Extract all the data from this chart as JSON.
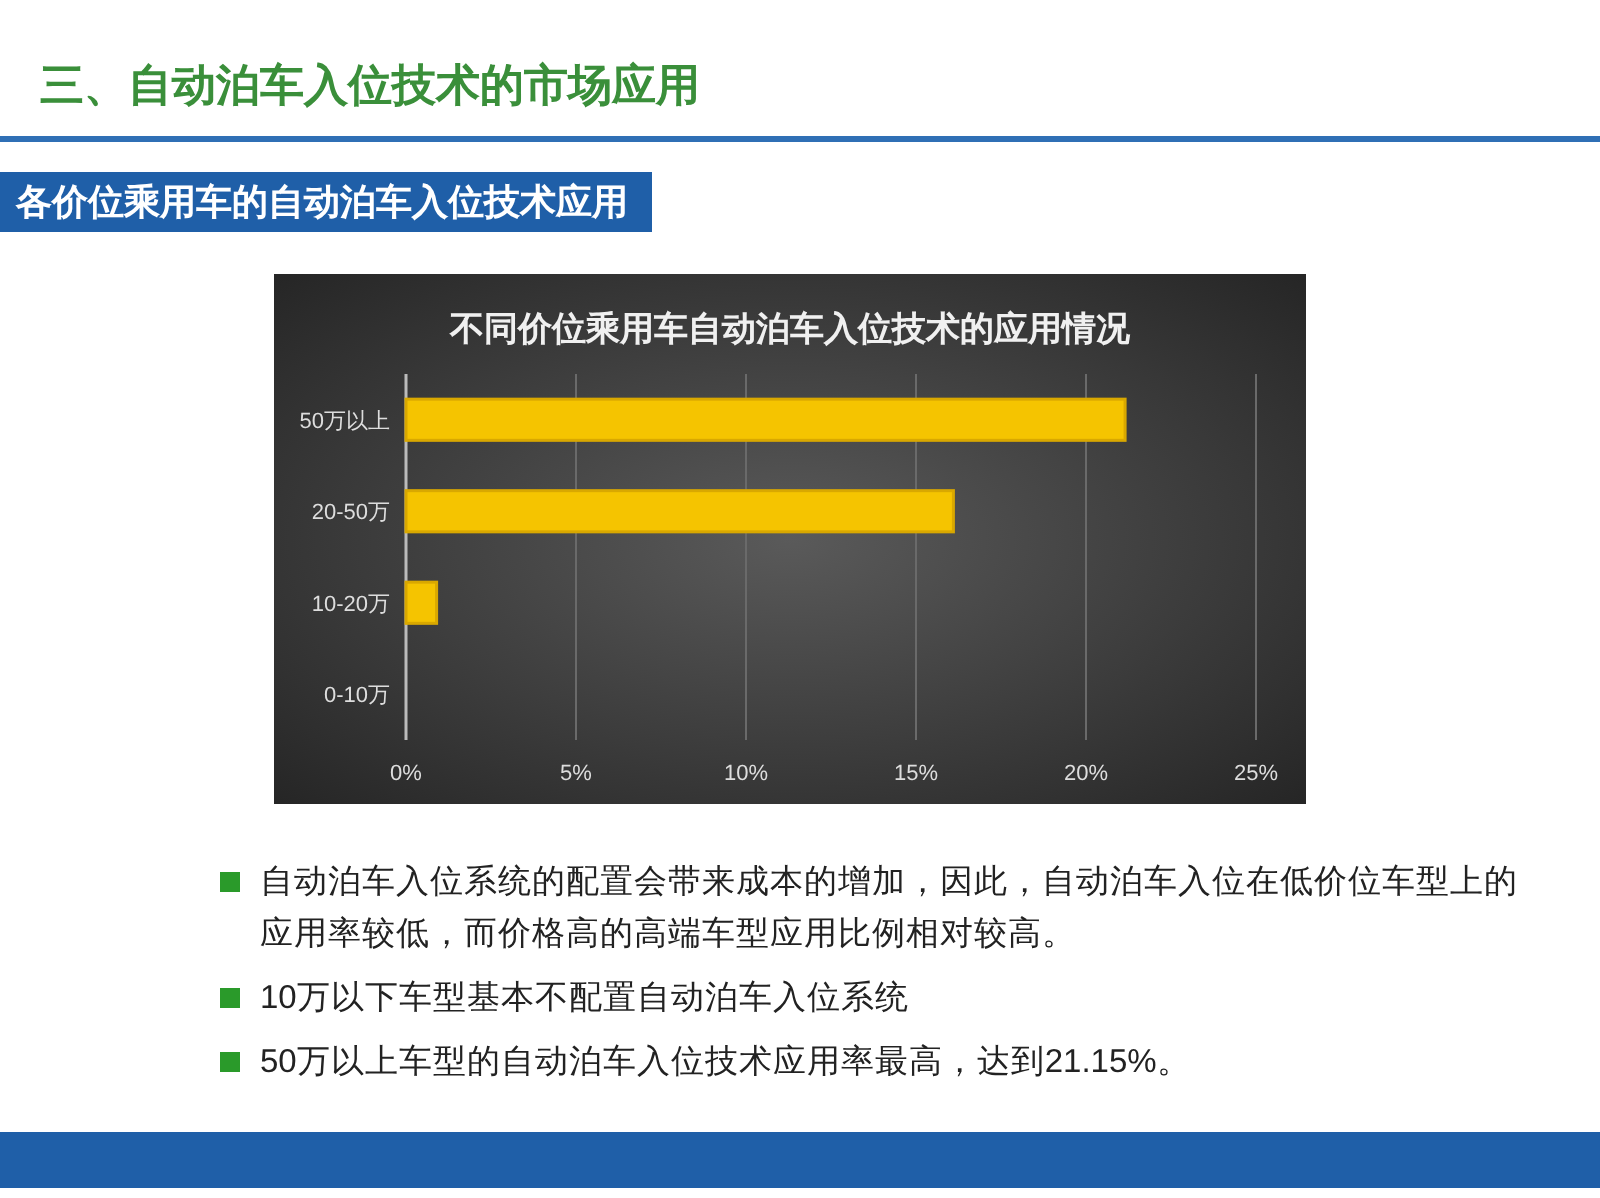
{
  "chart_data": {
    "type": "bar",
    "orientation": "horizontal",
    "title": "不同价位乘用车自动泊车入位技术的应用情况",
    "categories": [
      "50万以上",
      "20-50万",
      "10-20万",
      "0-10万"
    ],
    "values": [
      21.15,
      16.1,
      0.9,
      0
    ],
    "color": "#f5c400",
    "xlim": [
      0,
      25
    ],
    "xticks": [
      {
        "value": 0,
        "label": "0%"
      },
      {
        "value": 5,
        "label": "5%"
      },
      {
        "value": 10,
        "label": "10%"
      },
      {
        "value": 15,
        "label": "15%"
      },
      {
        "value": 20,
        "label": "20%"
      },
      {
        "value": 25,
        "label": "25%"
      }
    ],
    "grid": "x",
    "annotations": [
      "三、自动泊车入位技术的市场应用",
      "各价位乘用车的自动泊车入位技术应用",
      "自动泊车入位系统的配置会带来成本的增加，因此，自动泊车入位在低价位车型上的应用率较低，而价格高的高端车型应用比例相对较高。",
      "10万以下车型基本不配置自动泊车入位系统",
      "50万以上车型的自动泊车入位技术应用率最高，达到21.15%。"
    ]
  }
}
